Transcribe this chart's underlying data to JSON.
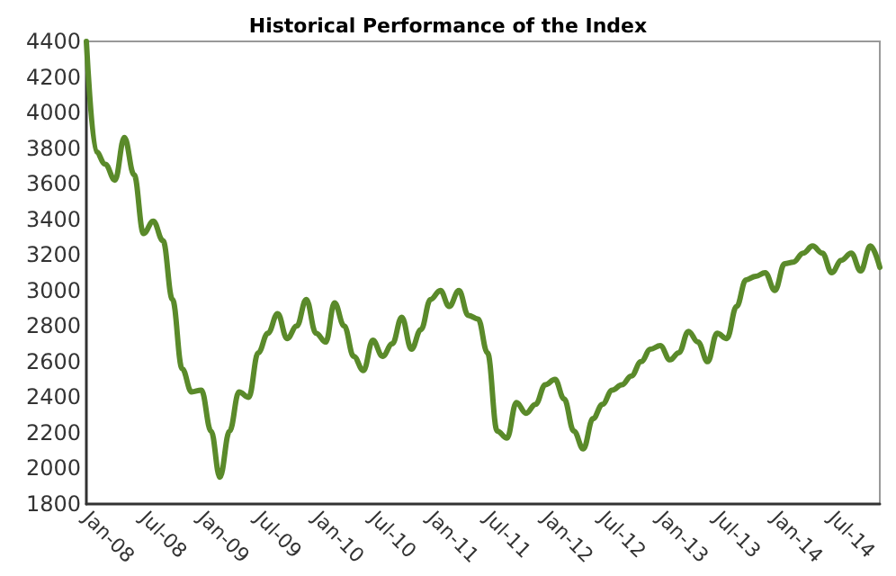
{
  "chart_data": {
    "type": "line",
    "title": "Historical Performance of the Index",
    "x": [
      "2008-01",
      "2008-02",
      "2008-03",
      "2008-04",
      "2008-05",
      "2008-06",
      "2008-07",
      "2008-08",
      "2008-09",
      "2008-10",
      "2008-11",
      "2008-12",
      "2009-01",
      "2009-02",
      "2009-03",
      "2009-04",
      "2009-05",
      "2009-06",
      "2009-07",
      "2009-08",
      "2009-09",
      "2009-10",
      "2009-11",
      "2009-12",
      "2010-01",
      "2010-02",
      "2010-03",
      "2010-04",
      "2010-05",
      "2010-06",
      "2010-07",
      "2010-08",
      "2010-09",
      "2010-10",
      "2010-11",
      "2010-12",
      "2011-01",
      "2011-02",
      "2011-03",
      "2011-04",
      "2011-05",
      "2011-06",
      "2011-07",
      "2011-08",
      "2011-09",
      "2011-10",
      "2011-11",
      "2011-12",
      "2012-01",
      "2012-02",
      "2012-03",
      "2012-04",
      "2012-05",
      "2012-06",
      "2012-07",
      "2012-08",
      "2012-09",
      "2012-10",
      "2012-11",
      "2012-12",
      "2013-01",
      "2013-02",
      "2013-03",
      "2013-04",
      "2013-05",
      "2013-06",
      "2013-07",
      "2013-08",
      "2013-09",
      "2013-10",
      "2013-11",
      "2013-12",
      "2014-01",
      "2014-02",
      "2014-03",
      "2014-04",
      "2014-05",
      "2014-06",
      "2014-07",
      "2014-08",
      "2014-09",
      "2014-10",
      "2014-11",
      "2014-12"
    ],
    "series": [
      {
        "color": "#5a8a2a",
        "values": [
          4400,
          3780,
          3710,
          3620,
          3860,
          3650,
          3320,
          3390,
          3280,
          2950,
          2560,
          2430,
          2440,
          2210,
          1950,
          2210,
          2430,
          2400,
          2650,
          2760,
          2870,
          2730,
          2800,
          2950,
          2760,
          2710,
          2930,
          2800,
          2630,
          2550,
          2720,
          2630,
          2700,
          2850,
          2670,
          2780,
          2950,
          3000,
          2910,
          3000,
          2860,
          2840,
          2650,
          2210,
          2170,
          2370,
          2310,
          2360,
          2470,
          2500,
          2390,
          2210,
          2110,
          2280,
          2360,
          2440,
          2470,
          2520,
          2600,
          2670,
          2690,
          2610,
          2650,
          2770,
          2710,
          2600,
          2760,
          2730,
          2910,
          3060,
          3080,
          3100,
          3000,
          3150,
          3160,
          3210,
          3250,
          3210,
          3100,
          3170,
          3210,
          3110,
          3250,
          3130
        ]
      }
    ],
    "xlim": [
      "2008-01",
      "2014-12"
    ],
    "xticks": [
      {
        "value": "2008-01",
        "label": "Jan-08"
      },
      {
        "value": "2008-07",
        "label": "Jul-08"
      },
      {
        "value": "2009-01",
        "label": "Jan-09"
      },
      {
        "value": "2009-07",
        "label": "Jul-09"
      },
      {
        "value": "2010-01",
        "label": "Jan-10"
      },
      {
        "value": "2010-07",
        "label": "Jul-10"
      },
      {
        "value": "2011-01",
        "label": "Jan-11"
      },
      {
        "value": "2011-07",
        "label": "Jul-11"
      },
      {
        "value": "2012-01",
        "label": "Jan-12"
      },
      {
        "value": "2012-07",
        "label": "Jul-12"
      },
      {
        "value": "2013-01",
        "label": "Jan-13"
      },
      {
        "value": "2013-07",
        "label": "Jul-13"
      },
      {
        "value": "2014-01",
        "label": "Jan-14"
      },
      {
        "value": "2014-07",
        "label": "Jul-14"
      }
    ],
    "ylim": [
      1800,
      4400
    ],
    "yticks": [
      1800,
      2000,
      2200,
      2400,
      2600,
      2800,
      3000,
      3200,
      3400,
      3600,
      3800,
      4000,
      4200,
      4400
    ],
    "grid": false,
    "marker": "none",
    "line_style": "solid"
  }
}
